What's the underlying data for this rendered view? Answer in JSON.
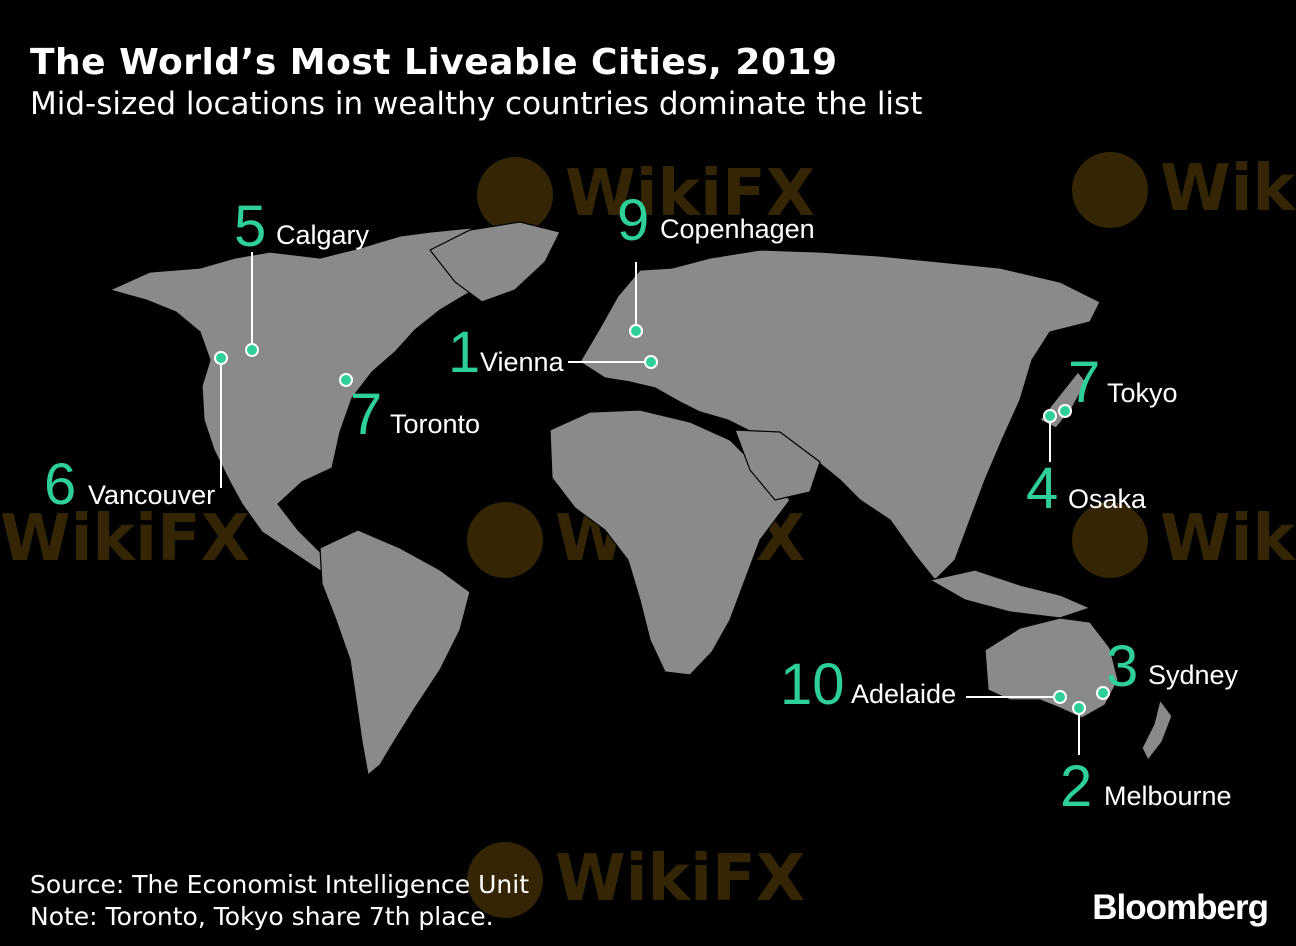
{
  "header": {
    "title": "The World’s Most Liveable Cities, 2019",
    "subtitle": "Mid-sized locations in wealthy countries dominate the list"
  },
  "cities": [
    {
      "rank": "1",
      "name": "Vienna"
    },
    {
      "rank": "2",
      "name": "Melbourne"
    },
    {
      "rank": "3",
      "name": "Sydney"
    },
    {
      "rank": "4",
      "name": "Osaka"
    },
    {
      "rank": "5",
      "name": "Calgary"
    },
    {
      "rank": "6",
      "name": "Vancouver"
    },
    {
      "rank": "7",
      "name": "Tokyo"
    },
    {
      "rank": "7",
      "name": "Toronto"
    },
    {
      "rank": "9",
      "name": "Copenhagen"
    },
    {
      "rank": "10",
      "name": "Adelaide"
    }
  ],
  "footer": {
    "source": "Source: The Economist Intelligence Unit",
    "note": "Note: Toronto, Tokyo share 7th place."
  },
  "brand": "Bloomberg",
  "watermark": "WikiFX",
  "colors": {
    "background": "#000000",
    "land": "#8a8a8a",
    "accent": "#2fcf9a",
    "watermark": "#3a2a06"
  }
}
